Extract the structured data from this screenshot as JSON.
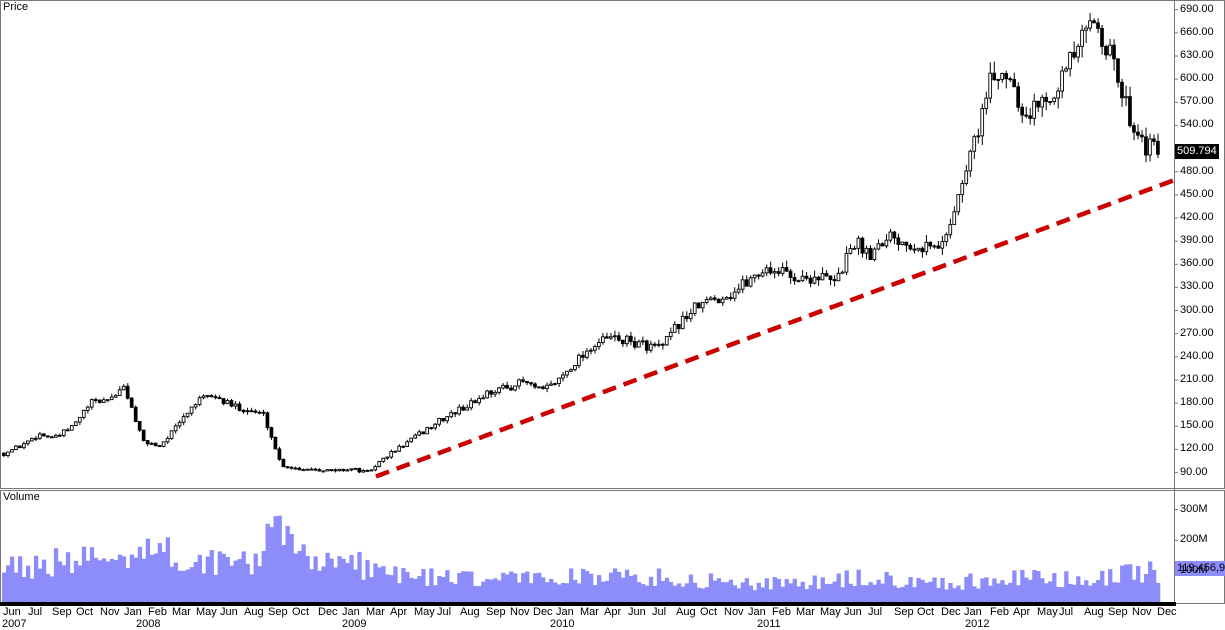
{
  "price_pane": {
    "title": "Price",
    "current_value": "509.794"
  },
  "volume_pane": {
    "title": "Volume",
    "current_value": "119,456,90"
  },
  "colors": {
    "volume_fill": "#8c8cfb",
    "trendline": "#cc0000",
    "candle": "#000000",
    "current_box": "#000000",
    "volume_box": "#8c8cfb"
  },
  "x_axis": {
    "months": [
      "Jun",
      "Jul",
      "Sep",
      "Oct",
      "Nov",
      "Jan",
      "Feb",
      "Mar",
      "May",
      "Jun",
      "Aug",
      "Sep",
      "Oct",
      "Dec",
      "Jan",
      "Mar",
      "Apr",
      "May",
      "Jul",
      "Aug",
      "Sep",
      "Nov",
      "Dec",
      "Jan",
      "Mar",
      "Apr",
      "Jun",
      "Jul",
      "Aug",
      "Oct",
      "Nov",
      "Jan",
      "Feb",
      "Mar",
      "May",
      "Jun",
      "Jul",
      "Sep",
      "Oct",
      "Dec",
      "Jan",
      "Feb",
      "Apr",
      "May",
      "Jul",
      "Aug",
      "Sep",
      "Nov",
      "Dec"
    ],
    "years": [
      "2007",
      "2008",
      "2009",
      "2010",
      "2011",
      "2012"
    ]
  },
  "chart_data": {
    "type": "candlestick",
    "price_axis": {
      "ticks": [
        "690.00",
        "660.00",
        "630.00",
        "600.00",
        "570.00",
        "540.00",
        "480.00",
        "450.00",
        "420.00",
        "390.00",
        "360.00",
        "330.00",
        "300.00",
        "270.00",
        "240.00",
        "210.00",
        "180.00",
        "150.00",
        "120.00",
        "90.00"
      ],
      "range": [
        70,
        700
      ]
    },
    "volume_axis": {
      "ticks": [
        "300M",
        "200M",
        "100M"
      ],
      "range": [
        0,
        360
      ]
    },
    "period": [
      "2007-06",
      "2012-12"
    ],
    "price_path": [
      [
        "2007-06",
        115
      ],
      [
        "2007-07",
        125
      ],
      [
        "2007-08",
        140
      ],
      [
        "2007-09",
        135
      ],
      [
        "2007-10",
        150
      ],
      [
        "2007-11",
        180
      ],
      [
        "2007-12",
        185
      ],
      [
        "2008-01",
        200
      ],
      [
        "2008-02",
        130
      ],
      [
        "2008-03",
        125
      ],
      [
        "2008-04",
        150
      ],
      [
        "2008-05",
        180
      ],
      [
        "2008-06",
        190
      ],
      [
        "2008-07",
        178
      ],
      [
        "2008-08",
        172
      ],
      [
        "2008-09",
        165
      ],
      [
        "2008-10",
        100
      ],
      [
        "2008-11",
        95
      ],
      [
        "2008-12",
        95
      ],
      [
        "2009-01",
        92
      ],
      [
        "2009-02",
        95
      ],
      [
        "2009-03",
        90
      ],
      [
        "2009-04",
        110
      ],
      [
        "2009-05",
        125
      ],
      [
        "2009-06",
        140
      ],
      [
        "2009-07",
        155
      ],
      [
        "2009-08",
        168
      ],
      [
        "2009-09",
        180
      ],
      [
        "2009-10",
        195
      ],
      [
        "2009-11",
        200
      ],
      [
        "2009-12",
        208
      ],
      [
        "2010-01",
        195
      ],
      [
        "2010-02",
        210
      ],
      [
        "2010-03",
        235
      ],
      [
        "2010-04",
        255
      ],
      [
        "2010-05",
        265
      ],
      [
        "2010-06",
        260
      ],
      [
        "2010-07",
        255
      ],
      [
        "2010-08",
        252
      ],
      [
        "2010-09",
        285
      ],
      [
        "2010-10",
        305
      ],
      [
        "2010-11",
        315
      ],
      [
        "2010-12",
        322
      ],
      [
        "2011-01",
        340
      ],
      [
        "2011-02",
        355
      ],
      [
        "2011-03",
        350
      ],
      [
        "2011-04",
        340
      ],
      [
        "2011-05",
        345
      ],
      [
        "2011-06",
        335
      ],
      [
        "2011-07",
        390
      ],
      [
        "2011-08",
        375
      ],
      [
        "2011-09",
        400
      ],
      [
        "2011-10",
        390
      ],
      [
        "2011-11",
        385
      ],
      [
        "2011-12",
        380
      ],
      [
        "2012-01",
        440
      ],
      [
        "2012-02",
        520
      ],
      [
        "2012-03",
        600
      ],
      [
        "2012-04",
        610
      ],
      [
        "2012-05",
        550
      ],
      [
        "2012-06",
        575
      ],
      [
        "2012-07",
        600
      ],
      [
        "2012-08",
        640
      ],
      [
        "2012-09",
        680
      ],
      [
        "2012-10",
        620
      ],
      [
        "2012-11",
        550
      ],
      [
        "2012-12",
        510
      ]
    ],
    "trendline": {
      "from": [
        "2009-03",
        85
      ],
      "to": [
        "2012-12",
        469
      ]
    },
    "volume_path": [
      [
        "2007-06",
        130
      ],
      [
        "2007-09",
        140
      ],
      [
        "2007-12",
        160
      ],
      [
        "2008-02",
        200
      ],
      [
        "2008-04",
        160
      ],
      [
        "2008-06",
        150
      ],
      [
        "2008-08",
        140
      ],
      [
        "2008-10",
        250
      ],
      [
        "2008-12",
        160
      ],
      [
        "2009-02",
        140
      ],
      [
        "2009-05",
        100
      ],
      [
        "2009-09",
        80
      ],
      [
        "2010-01",
        90
      ],
      [
        "2010-04",
        95
      ],
      [
        "2010-07",
        90
      ],
      [
        "2010-10",
        80
      ],
      [
        "2011-01",
        70
      ],
      [
        "2011-04",
        65
      ],
      [
        "2011-07",
        85
      ],
      [
        "2011-10",
        80
      ],
      [
        "2012-01",
        70
      ],
      [
        "2012-04",
        90
      ],
      [
        "2012-07",
        80
      ],
      [
        "2012-10",
        90
      ],
      [
        "2012-12",
        110
      ]
    ]
  }
}
